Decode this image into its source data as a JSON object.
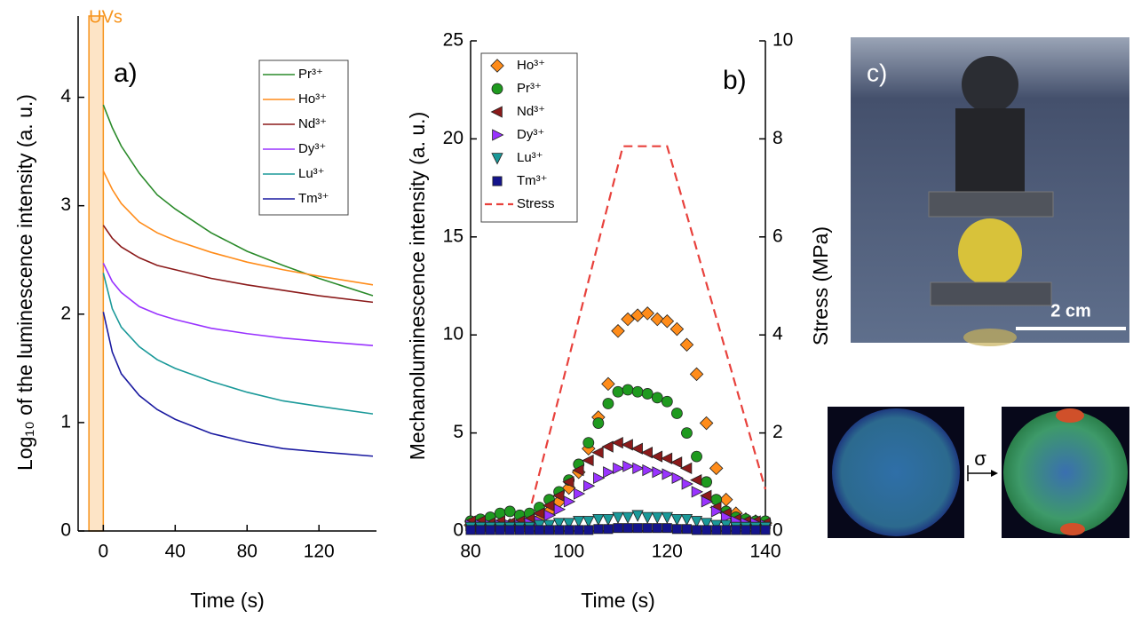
{
  "chart_data": [
    {
      "type": "line",
      "panel_label": "a)",
      "x_label": "Time (s)",
      "y_label": "Log₁₀ of the luminescence intensity (a. u.)",
      "xlim": [
        -14,
        152
      ],
      "ylim": [
        0,
        4.75
      ],
      "xticks": [
        0,
        40,
        80,
        120
      ],
      "yticks": [
        0,
        1,
        2,
        3,
        4
      ],
      "shaded_region": {
        "x": [
          -8,
          0
        ],
        "label": "UVs",
        "color": "#f7941d"
      },
      "legend": "upper right",
      "x": [
        0,
        5,
        10,
        20,
        30,
        40,
        60,
        80,
        100,
        120,
        150
      ],
      "series": [
        {
          "name": "Pr³⁺",
          "color": "#2a8a2a",
          "values": [
            3.93,
            3.72,
            3.55,
            3.3,
            3.1,
            2.97,
            2.75,
            2.58,
            2.45,
            2.33,
            2.17
          ]
        },
        {
          "name": "Ho³⁺",
          "color": "#ff8c1a",
          "values": [
            3.32,
            3.15,
            3.02,
            2.85,
            2.75,
            2.68,
            2.57,
            2.48,
            2.41,
            2.35,
            2.27
          ]
        },
        {
          "name": "Nd³⁺",
          "color": "#8b1a1a",
          "values": [
            2.82,
            2.7,
            2.62,
            2.52,
            2.45,
            2.41,
            2.33,
            2.27,
            2.22,
            2.17,
            2.11
          ]
        },
        {
          "name": "Dy³⁺",
          "color": "#9933ff",
          "values": [
            2.47,
            2.3,
            2.2,
            2.07,
            2.0,
            1.95,
            1.87,
            1.82,
            1.78,
            1.75,
            1.71
          ]
        },
        {
          "name": "Lu³⁺",
          "color": "#1a9999",
          "values": [
            2.38,
            2.05,
            1.88,
            1.7,
            1.58,
            1.5,
            1.38,
            1.28,
            1.2,
            1.15,
            1.08
          ]
        },
        {
          "name": "Tm³⁺",
          "color": "#1a1aa0",
          "values": [
            2.02,
            1.65,
            1.45,
            1.25,
            1.12,
            1.03,
            0.9,
            0.82,
            0.76,
            0.73,
            0.69
          ]
        }
      ]
    },
    {
      "type": "scatter",
      "panel_label": "b)",
      "x_label": "Time (s)",
      "y_label": "Mechanoluminescence intensity (a. u.)",
      "y2_label": "Stress (MPa)",
      "xlim": [
        80,
        140
      ],
      "ylim": [
        0,
        25
      ],
      "y2lim": [
        0,
        10
      ],
      "xticks": [
        80,
        100,
        120,
        140
      ],
      "yticks": [
        0,
        5,
        10,
        15,
        20,
        25
      ],
      "y2ticks": [
        0,
        2,
        4,
        6,
        8,
        10
      ],
      "legend": "upper left",
      "x": [
        80,
        82,
        84,
        86,
        88,
        90,
        92,
        94,
        96,
        98,
        100,
        102,
        104,
        106,
        108,
        110,
        112,
        114,
        116,
        118,
        120,
        122,
        124,
        126,
        128,
        130,
        132,
        134,
        136,
        138,
        140
      ],
      "series": [
        {
          "name": "Ho³⁺",
          "color": "#ff8c1a",
          "marker": "diamond",
          "values": [
            0.3,
            0.3,
            0.3,
            0.3,
            0.3,
            0.3,
            0.4,
            0.6,
            1.0,
            1.5,
            2.2,
            3.0,
            4.2,
            5.8,
            7.5,
            10.2,
            10.8,
            11.0,
            11.1,
            10.8,
            10.7,
            10.3,
            9.5,
            8.0,
            5.5,
            3.2,
            1.6,
            0.9,
            0.6,
            0.5,
            0.4
          ]
        },
        {
          "name": "Pr³⁺",
          "color": "#1f9a1f",
          "marker": "circle",
          "values": [
            0.5,
            0.6,
            0.7,
            0.9,
            1.0,
            0.8,
            0.9,
            1.2,
            1.6,
            2.0,
            2.6,
            3.4,
            4.5,
            5.5,
            6.5,
            7.1,
            7.2,
            7.1,
            7.0,
            6.8,
            6.6,
            6.0,
            5.0,
            3.8,
            2.5,
            1.6,
            1.0,
            0.7,
            0.6,
            0.5,
            0.5
          ]
        },
        {
          "name": "Nd³⁺",
          "color": "#8b1a1a",
          "marker": "triangle-left",
          "values": [
            0.5,
            0.5,
            0.4,
            0.5,
            0.4,
            0.5,
            0.6,
            0.9,
            1.3,
            1.8,
            2.5,
            3.1,
            3.6,
            4.0,
            4.3,
            4.5,
            4.4,
            4.2,
            4.0,
            3.8,
            3.7,
            3.5,
            3.2,
            2.6,
            1.8,
            1.2,
            0.9,
            0.6,
            0.5,
            0.5,
            0.4
          ]
        },
        {
          "name": "Dy³⁺",
          "color": "#9933ff",
          "marker": "triangle-right",
          "values": [
            0.3,
            0.3,
            0.3,
            0.3,
            0.3,
            0.3,
            0.4,
            0.5,
            0.8,
            1.1,
            1.5,
            1.9,
            2.3,
            2.7,
            3.0,
            3.2,
            3.3,
            3.2,
            3.1,
            3.0,
            2.9,
            2.7,
            2.4,
            2.0,
            1.5,
            1.0,
            0.7,
            0.5,
            0.4,
            0.4,
            0.3
          ]
        },
        {
          "name": "Lu³⁺",
          "color": "#1a9999",
          "marker": "triangle-down",
          "values": [
            0.2,
            0.2,
            0.2,
            0.2,
            0.2,
            0.2,
            0.2,
            0.3,
            0.3,
            0.4,
            0.4,
            0.5,
            0.5,
            0.6,
            0.6,
            0.7,
            0.7,
            0.8,
            0.7,
            0.7,
            0.7,
            0.6,
            0.6,
            0.5,
            0.4,
            0.3,
            0.3,
            0.2,
            0.2,
            0.2,
            0.2
          ]
        },
        {
          "name": "Tm³⁺",
          "color": "#14148c",
          "marker": "square",
          "values": [
            0.05,
            0.05,
            0.05,
            0.05,
            0.05,
            0.05,
            0.05,
            0.05,
            0.05,
            0.05,
            0.05,
            0.05,
            0.05,
            0.1,
            0.1,
            0.15,
            0.15,
            0.15,
            0.15,
            0.15,
            0.15,
            0.1,
            0.1,
            0.05,
            0.05,
            0.05,
            0.05,
            0.05,
            0.05,
            0.05,
            0.05
          ]
        },
        {
          "name": "Stress",
          "color": "#e8413c",
          "linestyle": "dashed",
          "axis": "y2",
          "x": [
            91,
            111,
            120,
            140
          ],
          "values": [
            0,
            7.85,
            7.85,
            0.85
          ]
        }
      ]
    }
  ],
  "panel_c": {
    "label": "c)",
    "scale_bar": "2 cm",
    "sigma": "σ"
  }
}
